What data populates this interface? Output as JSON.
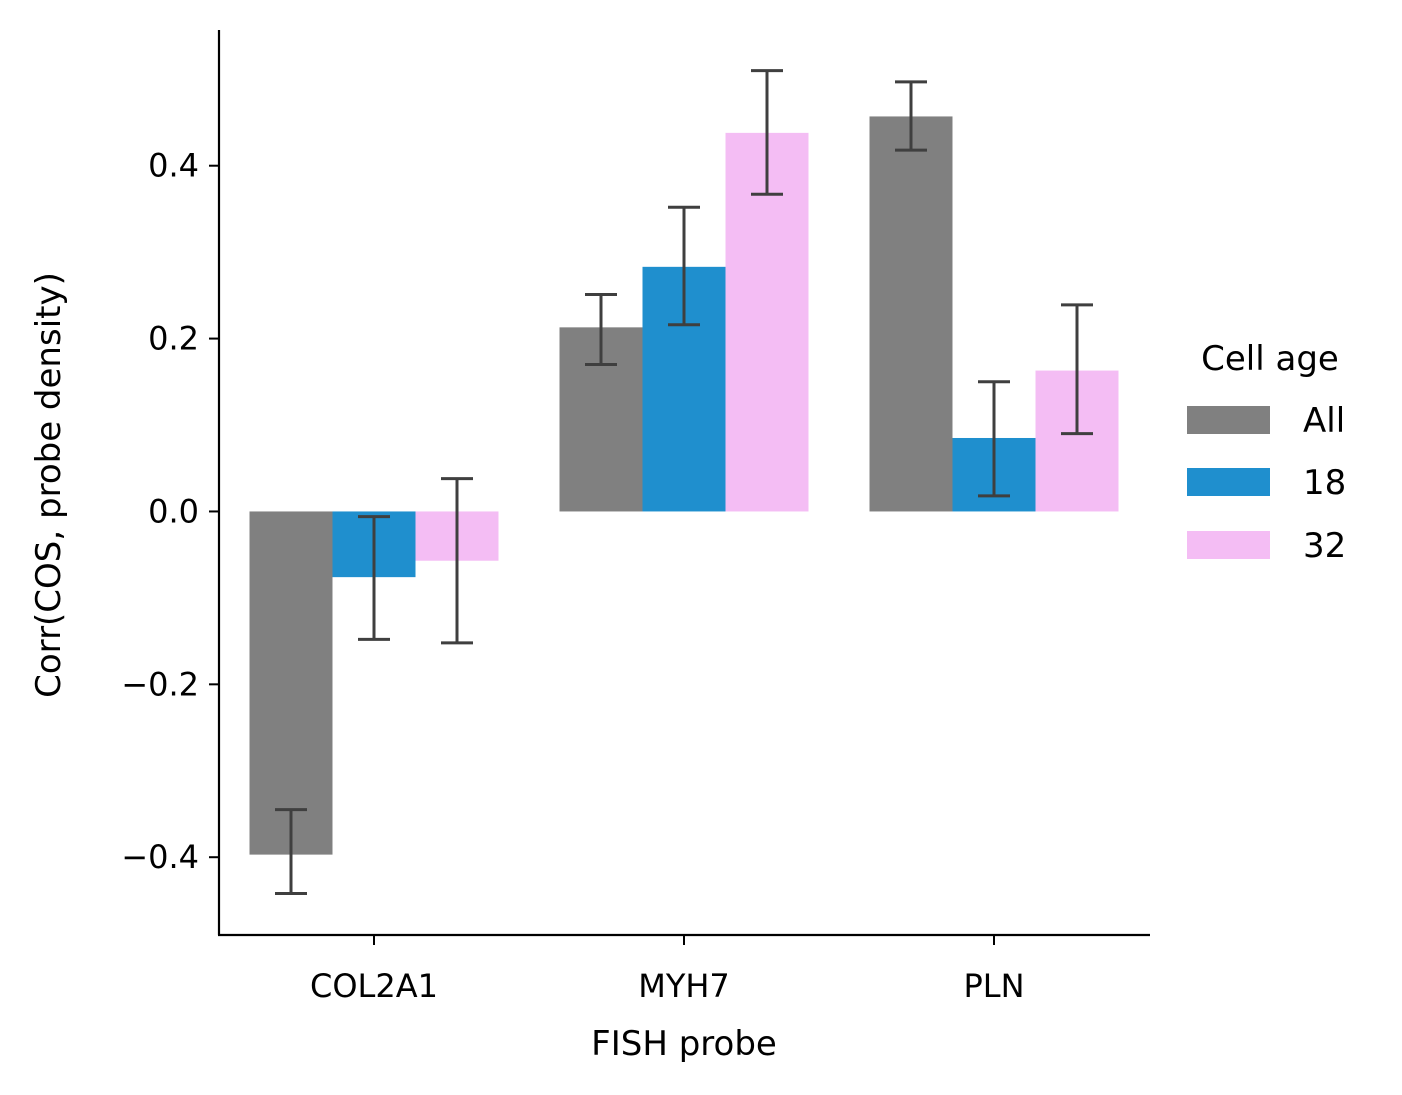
{
  "chart_data": {
    "type": "bar",
    "title": "",
    "xlabel": "FISH probe",
    "ylabel": "Corr(COS, probe density)",
    "categories": [
      "COL2A1",
      "MYH7",
      "PLN"
    ],
    "ylim": [
      -0.49,
      0.557
    ],
    "yticks": [
      -0.4,
      -0.2,
      0.0,
      0.2,
      0.4
    ],
    "ytick_labels": [
      "−0.4",
      "−0.2",
      "0.0",
      "0.2",
      "0.4"
    ],
    "grid": false,
    "legend": {
      "title": "Cell age",
      "position": "right"
    },
    "series": [
      {
        "name": "All",
        "color": "#808080",
        "values": [
          -0.397,
          0.213,
          0.457
        ],
        "err_low": [
          -0.442,
          0.17,
          0.418
        ],
        "err_high": [
          -0.345,
          0.251,
          0.497
        ]
      },
      {
        "name": "18",
        "color": "#1f8fce",
        "values": [
          -0.076,
          0.283,
          0.085
        ],
        "err_low": [
          -0.148,
          0.216,
          0.018
        ],
        "err_high": [
          -0.006,
          0.352,
          0.15
        ]
      },
      {
        "name": "32",
        "color": "#f4bdf4",
        "values": [
          -0.057,
          0.438,
          0.163
        ],
        "err_low": [
          -0.152,
          0.367,
          0.09
        ],
        "err_high": [
          0.038,
          0.51,
          0.239
        ]
      }
    ]
  }
}
